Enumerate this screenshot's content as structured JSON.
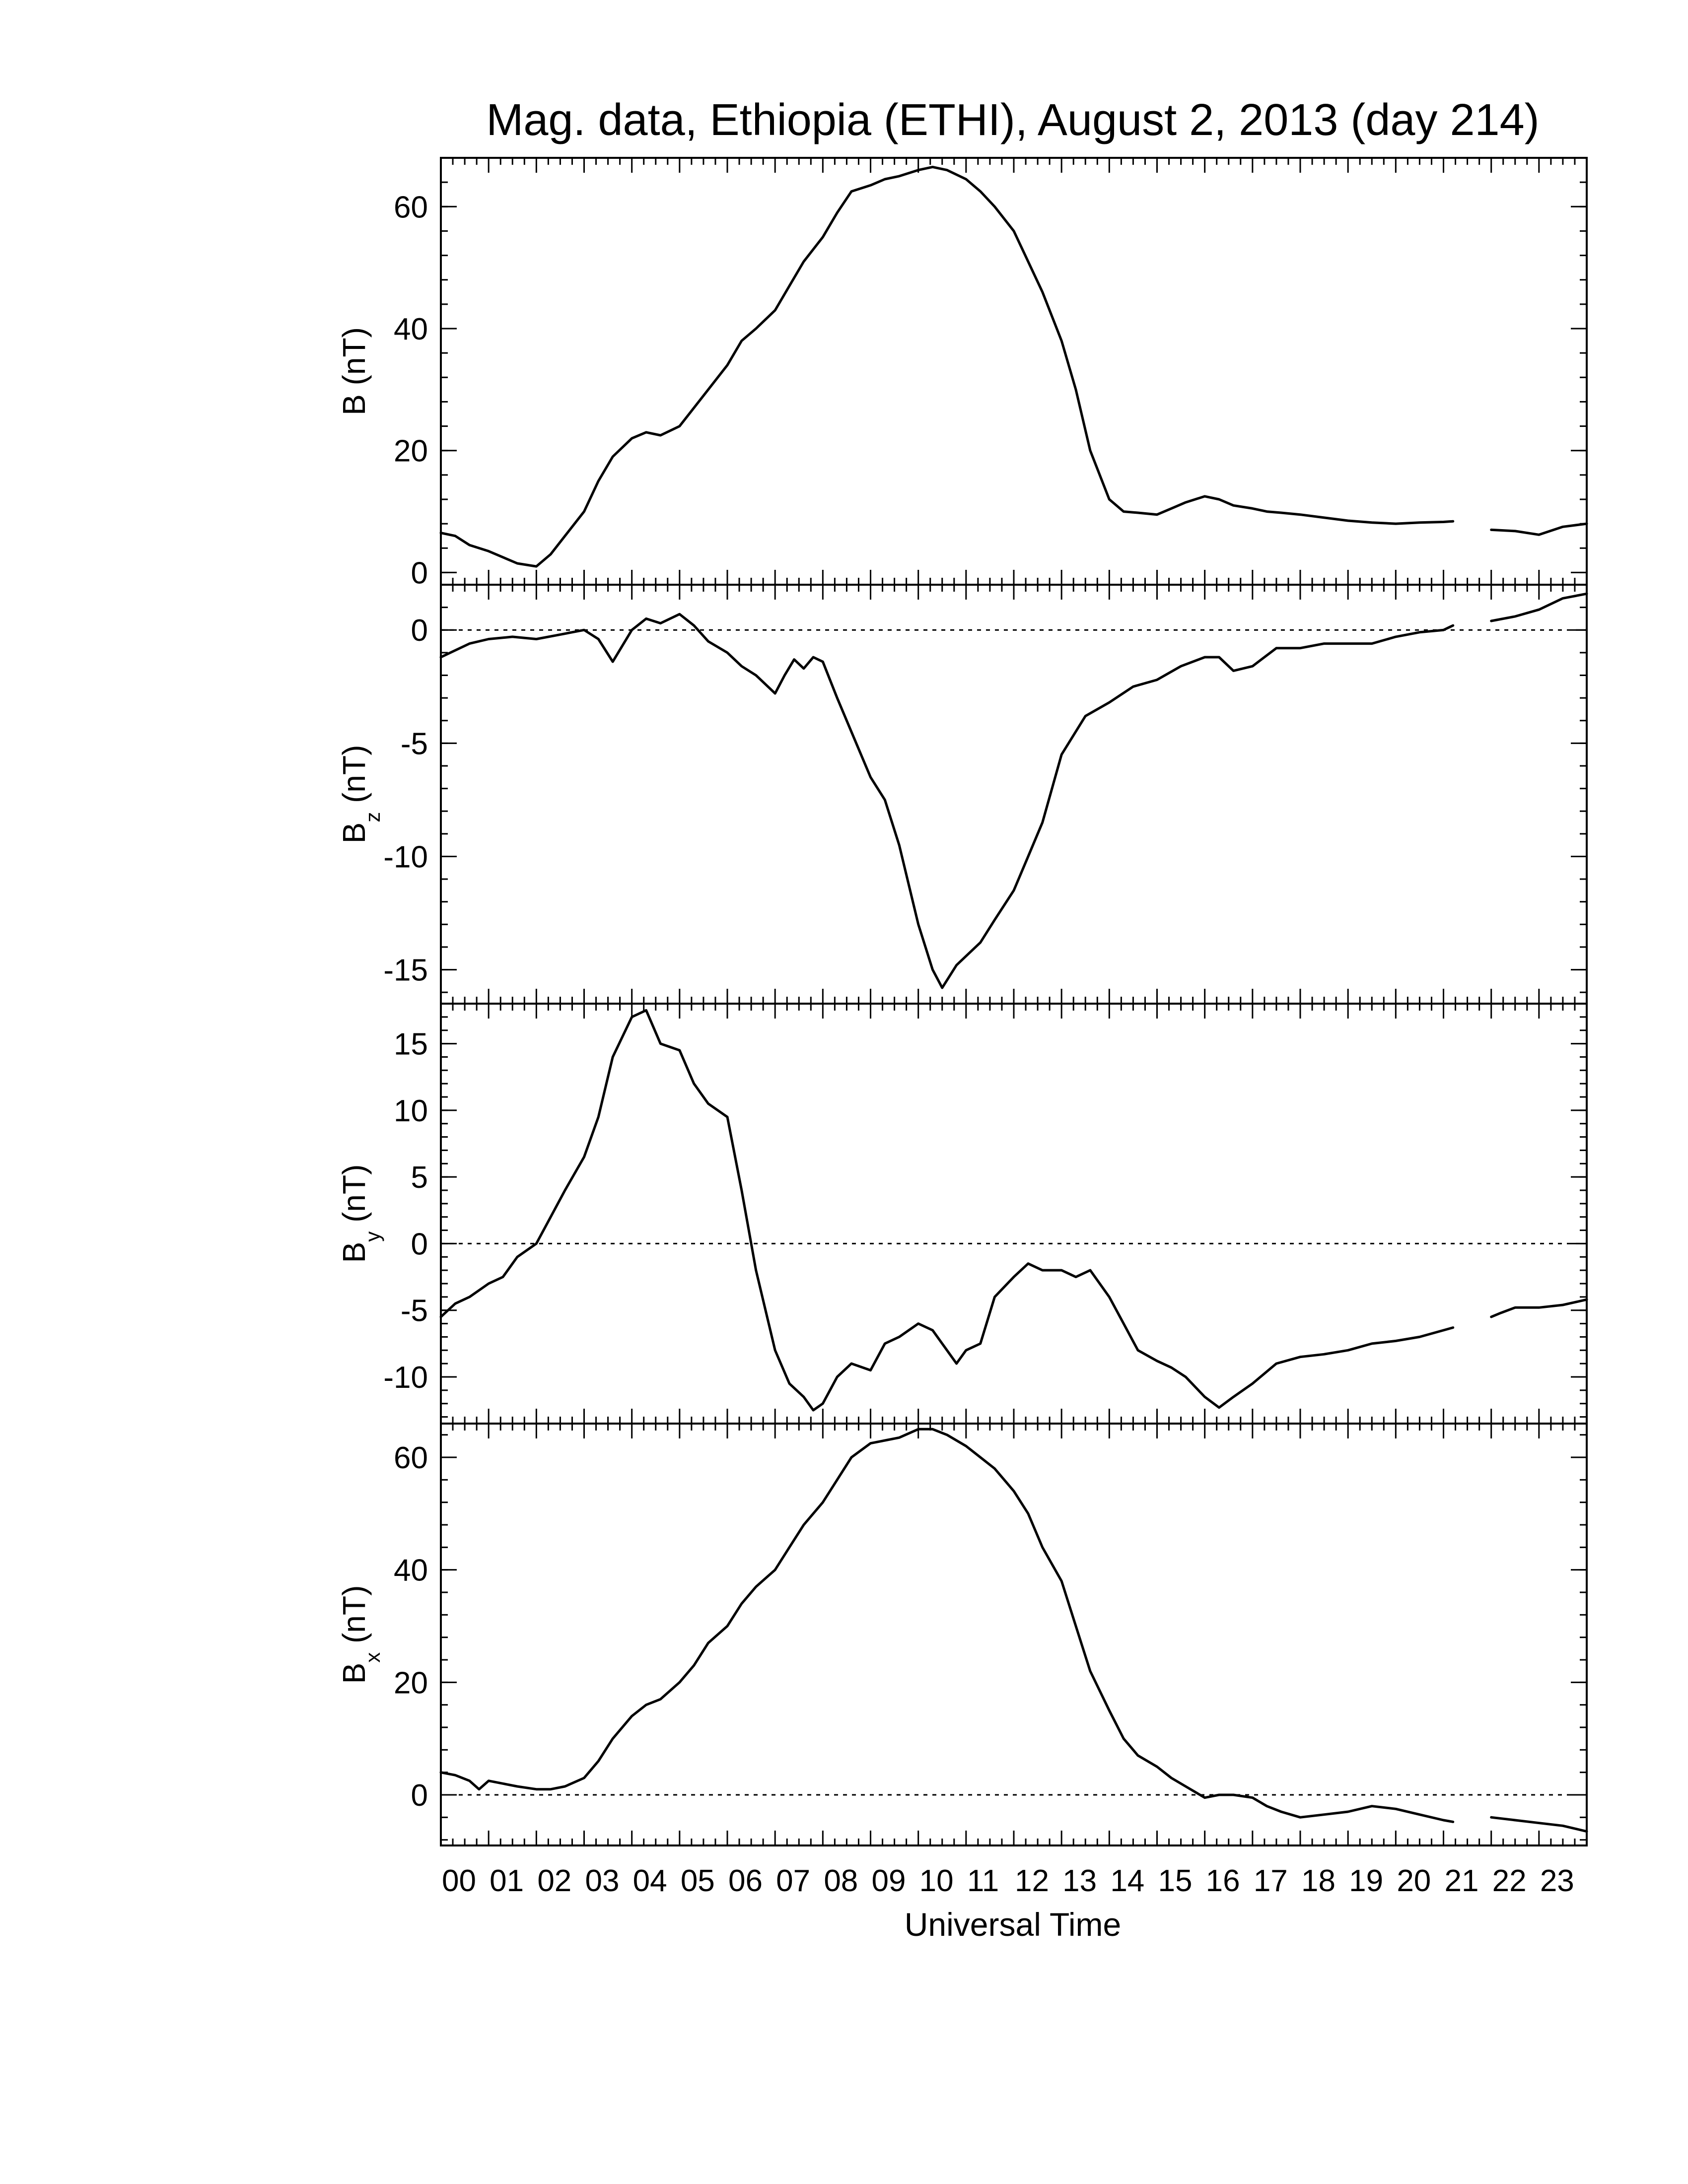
{
  "chart_data": {
    "type": "line",
    "title": "Mag. data, Ethiopia (ETHI), August 2, 2013 (day 214)",
    "xlabel": "Universal Time",
    "x_ticks": [
      "00",
      "01",
      "02",
      "03",
      "04",
      "05",
      "06",
      "07",
      "08",
      "09",
      "10",
      "11",
      "12",
      "13",
      "14",
      "15",
      "16",
      "17",
      "18",
      "19",
      "20",
      "21",
      "22",
      "23"
    ],
    "xlim": [
      0,
      24
    ],
    "data_gap": [
      21.2,
      22.0
    ],
    "panels": [
      {
        "name": "B",
        "ylabel_base": "B",
        "ylabel_sub": "",
        "ylabel_unit": "(nT)",
        "ylim": [
          -2,
          68
        ],
        "yticks": [
          0,
          20,
          40,
          60
        ],
        "yticks_labels": [
          "0",
          "20",
          "40",
          "60"
        ],
        "zero_line": false,
        "x": [
          0.0,
          0.3,
          0.6,
          1.0,
          1.3,
          1.6,
          2.0,
          2.3,
          2.6,
          3.0,
          3.3,
          3.6,
          4.0,
          4.3,
          4.6,
          5.0,
          5.3,
          5.6,
          6.0,
          6.3,
          6.6,
          7.0,
          7.3,
          7.6,
          8.0,
          8.3,
          8.6,
          9.0,
          9.3,
          9.6,
          10.0,
          10.3,
          10.6,
          11.0,
          11.3,
          11.6,
          12.0,
          12.3,
          12.6,
          13.0,
          13.3,
          13.6,
          14.0,
          14.3,
          14.6,
          15.0,
          15.3,
          15.6,
          16.0,
          16.3,
          16.6,
          17.0,
          17.3,
          17.6,
          18.0,
          18.5,
          19.0,
          19.5,
          20.0,
          20.5,
          21.0,
          21.2,
          22.0,
          22.5,
          23.0,
          23.5,
          24.0
        ],
        "y": [
          6.5,
          6.0,
          4.5,
          3.5,
          2.5,
          1.5,
          1.0,
          3.0,
          6.0,
          10.0,
          15.0,
          19.0,
          22.0,
          23.0,
          22.5,
          24.0,
          27.0,
          30.0,
          34.0,
          38.0,
          40.0,
          43.0,
          47.0,
          51.0,
          55.0,
          59.0,
          62.5,
          63.5,
          64.5,
          65.0,
          66.0,
          66.5,
          66.0,
          64.5,
          62.5,
          60.0,
          56.0,
          51.0,
          46.0,
          38.0,
          30.0,
          20.0,
          12.0,
          10.0,
          9.8,
          9.5,
          10.5,
          11.5,
          12.5,
          12.0,
          11.0,
          10.5,
          10.0,
          9.8,
          9.5,
          9.0,
          8.5,
          8.2,
          8.0,
          8.2,
          8.3,
          8.4,
          7.0,
          6.8,
          6.2,
          7.5,
          8.0
        ]
      },
      {
        "name": "Bz",
        "ylabel_base": "B",
        "ylabel_sub": "z",
        "ylabel_unit": "(nT)",
        "ylim": [
          -16.5,
          2
        ],
        "yticks": [
          -15,
          -10,
          -5,
          0
        ],
        "yticks_labels": [
          "-15",
          "-10",
          "-5",
          "0"
        ],
        "zero_line": true,
        "x": [
          0.0,
          0.3,
          0.6,
          1.0,
          1.5,
          2.0,
          2.5,
          3.0,
          3.3,
          3.6,
          4.0,
          4.3,
          4.6,
          5.0,
          5.3,
          5.6,
          6.0,
          6.3,
          6.6,
          7.0,
          7.2,
          7.4,
          7.6,
          7.8,
          8.0,
          8.3,
          8.6,
          9.0,
          9.3,
          9.6,
          10.0,
          10.3,
          10.5,
          10.8,
          11.0,
          11.3,
          11.6,
          12.0,
          12.3,
          12.6,
          13.0,
          13.5,
          14.0,
          14.5,
          15.0,
          15.5,
          16.0,
          16.3,
          16.6,
          17.0,
          17.5,
          18.0,
          18.5,
          19.0,
          19.5,
          20.0,
          20.5,
          21.0,
          21.2,
          22.0,
          22.5,
          23.0,
          23.5,
          24.0
        ],
        "y": [
          -1.2,
          -0.9,
          -0.6,
          -0.4,
          -0.3,
          -0.4,
          -0.2,
          0.0,
          -0.4,
          -1.4,
          0.0,
          0.5,
          0.3,
          0.7,
          0.2,
          -0.5,
          -1.0,
          -1.6,
          -2.0,
          -2.8,
          -2.0,
          -1.3,
          -1.7,
          -1.2,
          -1.4,
          -3.0,
          -4.5,
          -6.5,
          -7.5,
          -9.5,
          -13.0,
          -15.0,
          -15.8,
          -14.8,
          -14.4,
          -13.8,
          -12.8,
          -11.5,
          -10.0,
          -8.5,
          -5.5,
          -3.8,
          -3.2,
          -2.5,
          -2.2,
          -1.6,
          -1.2,
          -1.2,
          -1.8,
          -1.6,
          -0.8,
          -0.8,
          -0.6,
          -0.6,
          -0.6,
          -0.3,
          -0.1,
          0.0,
          0.2,
          0.4,
          0.6,
          0.9,
          1.4,
          1.6
        ]
      },
      {
        "name": "By",
        "ylabel_base": "B",
        "ylabel_sub": "y",
        "ylabel_unit": "(nT)",
        "ylim": [
          -13.5,
          18
        ],
        "yticks": [
          -10,
          -5,
          0,
          5,
          10,
          15
        ],
        "yticks_labels": [
          "-10",
          "-5",
          "0",
          "5",
          "10",
          "15"
        ],
        "zero_line": true,
        "x": [
          0.0,
          0.3,
          0.6,
          1.0,
          1.3,
          1.6,
          2.0,
          2.3,
          2.6,
          3.0,
          3.3,
          3.6,
          4.0,
          4.3,
          4.6,
          5.0,
          5.3,
          5.6,
          6.0,
          6.3,
          6.6,
          7.0,
          7.3,
          7.6,
          7.8,
          8.0,
          8.3,
          8.6,
          9.0,
          9.3,
          9.6,
          10.0,
          10.3,
          10.5,
          10.8,
          11.0,
          11.3,
          11.6,
          12.0,
          12.3,
          12.6,
          13.0,
          13.3,
          13.6,
          14.0,
          14.3,
          14.6,
          15.0,
          15.3,
          15.6,
          16.0,
          16.3,
          16.6,
          17.0,
          17.5,
          18.0,
          18.5,
          19.0,
          19.5,
          20.0,
          20.5,
          21.0,
          21.2,
          22.0,
          22.2,
          22.5,
          23.0,
          23.5,
          24.0
        ],
        "y": [
          -5.5,
          -4.5,
          -4.0,
          -3.0,
          -2.5,
          -1.0,
          0.0,
          2.0,
          4.0,
          6.5,
          9.5,
          14.0,
          17.0,
          17.5,
          15.0,
          14.5,
          12.0,
          10.5,
          9.5,
          4.0,
          -2.0,
          -8.0,
          -10.5,
          -11.5,
          -12.5,
          -12.0,
          -10.0,
          -9.0,
          -9.5,
          -7.5,
          -7.0,
          -6.0,
          -6.5,
          -7.5,
          -9.0,
          -8.0,
          -7.5,
          -4.0,
          -2.5,
          -1.5,
          -2.0,
          -2.0,
          -2.5,
          -2.0,
          -4.0,
          -6.0,
          -8.0,
          -8.8,
          -9.3,
          -10.0,
          -11.5,
          -12.3,
          -11.5,
          -10.5,
          -9.0,
          -8.5,
          -8.3,
          -8.0,
          -7.5,
          -7.3,
          -7.0,
          -6.5,
          -6.3,
          -5.5,
          -5.2,
          -4.8,
          -4.8,
          -4.6,
          -4.2
        ]
      },
      {
        "name": "Bx",
        "ylabel_base": "B",
        "ylabel_sub": "x",
        "ylabel_unit": "(nT)",
        "ylim": [
          -9,
          66
        ],
        "yticks": [
          0,
          20,
          40,
          60
        ],
        "yticks_labels": [
          "0",
          "20",
          "40",
          "60"
        ],
        "zero_line": true,
        "x": [
          0.0,
          0.3,
          0.6,
          0.8,
          1.0,
          1.3,
          1.6,
          2.0,
          2.3,
          2.6,
          3.0,
          3.3,
          3.6,
          4.0,
          4.3,
          4.6,
          5.0,
          5.3,
          5.6,
          6.0,
          6.3,
          6.6,
          7.0,
          7.3,
          7.6,
          8.0,
          8.3,
          8.6,
          9.0,
          9.3,
          9.6,
          10.0,
          10.3,
          10.6,
          11.0,
          11.3,
          11.6,
          12.0,
          12.3,
          12.6,
          13.0,
          13.3,
          13.6,
          14.0,
          14.3,
          14.6,
          15.0,
          15.3,
          15.6,
          16.0,
          16.3,
          16.6,
          17.0,
          17.3,
          17.6,
          18.0,
          18.5,
          19.0,
          19.5,
          20.0,
          20.5,
          21.0,
          21.2,
          22.0,
          22.5,
          23.0,
          23.5,
          24.0
        ],
        "y": [
          4.0,
          3.5,
          2.5,
          1.0,
          2.5,
          2.0,
          1.5,
          1.0,
          1.0,
          1.5,
          3.0,
          6.0,
          10.0,
          14.0,
          16.0,
          17.0,
          20.0,
          23.0,
          27.0,
          30.0,
          34.0,
          37.0,
          40.0,
          44.0,
          48.0,
          52.0,
          56.0,
          60.0,
          62.5,
          63.0,
          63.5,
          65.0,
          65.0,
          64.0,
          62.0,
          60.0,
          58.0,
          54.0,
          50.0,
          44.0,
          38.0,
          30.0,
          22.0,
          15.0,
          10.0,
          7.0,
          5.0,
          3.0,
          1.5,
          -0.5,
          0.0,
          0.0,
          -0.5,
          -2.0,
          -3.0,
          -4.0,
          -3.5,
          -3.0,
          -2.0,
          -2.5,
          -3.5,
          -4.5,
          -4.8,
          -4.0,
          -4.5,
          -5.0,
          -5.5,
          -6.5
        ]
      }
    ]
  }
}
